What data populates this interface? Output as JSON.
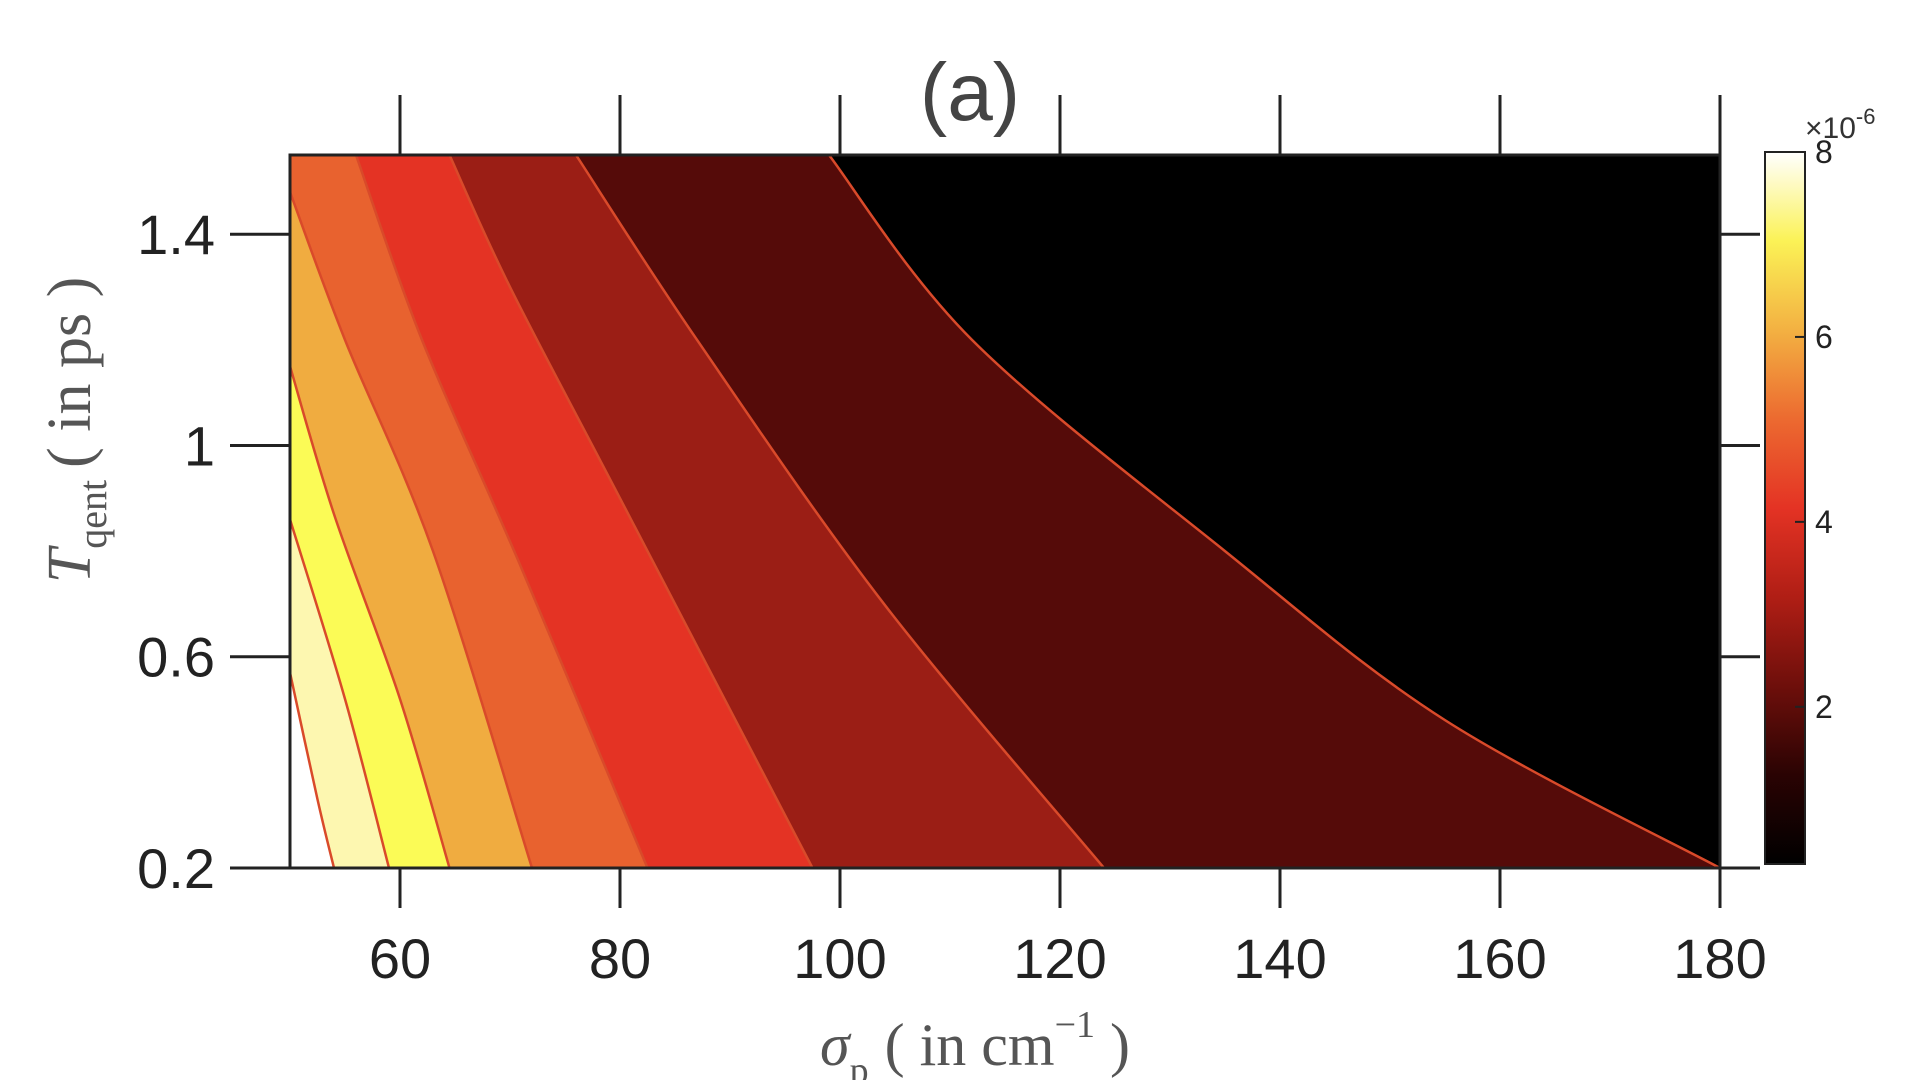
{
  "chart_data": {
    "type": "contour",
    "title": "(a)",
    "xlabel": {
      "symbol": "σ",
      "subscript": "p",
      "unit": "( in cm",
      "exponent": "−1",
      "close": " )"
    },
    "ylabel": {
      "symbol": "T",
      "subscript": "qent",
      "unit": "( in ps )"
    },
    "xlim": [
      50,
      180
    ],
    "ylim": [
      0.2,
      1.55
    ],
    "x_ticks": [
      60,
      80,
      100,
      120,
      140,
      160,
      180
    ],
    "y_ticks": [
      0.2,
      0.6,
      1,
      1.4
    ],
    "x_tick_labels": [
      "60",
      "80",
      "100",
      "120",
      "140",
      "160",
      "180"
    ],
    "y_tick_labels": [
      "0.2",
      "0.6",
      "1",
      "1.4"
    ],
    "colorbar": {
      "range": [
        0.3,
        8.0
      ],
      "ticks": [
        2,
        4,
        6,
        8
      ],
      "tick_labels": [
        "2",
        "4",
        "6",
        "8"
      ],
      "multiplier_base": "×10",
      "multiplier_exponent": "-6"
    },
    "contour_levels": [
      1,
      2,
      3,
      4,
      5,
      6,
      7
    ],
    "contour_lines": [
      {
        "level": 7,
        "points": [
          [
            50,
            0.57
          ],
          [
            52.5,
            0.33
          ],
          [
            54,
            0.2
          ]
        ]
      },
      {
        "level": 6,
        "points": [
          [
            50,
            0.86
          ],
          [
            55,
            0.52
          ],
          [
            59,
            0.2
          ]
        ]
      },
      {
        "level": 5,
        "points": [
          [
            50,
            1.15
          ],
          [
            54,
            0.87
          ],
          [
            60,
            0.52
          ],
          [
            64.5,
            0.2
          ]
        ]
      },
      {
        "level": 4,
        "points": [
          [
            50,
            1.48
          ],
          [
            55,
            1.2
          ],
          [
            63,
            0.8
          ],
          [
            72,
            0.2
          ]
        ]
      },
      {
        "level": 3,
        "points": [
          [
            56,
            1.55
          ],
          [
            62,
            1.2
          ],
          [
            71,
            0.77
          ],
          [
            82.5,
            0.2
          ]
        ]
      },
      {
        "level": 2,
        "points": [
          [
            64.5,
            1.55
          ],
          [
            70,
            1.3
          ],
          [
            80,
            0.9
          ],
          [
            97.5,
            0.2
          ]
        ]
      },
      {
        "level": 1,
        "points": [
          [
            76,
            1.55
          ],
          [
            87,
            1.2
          ],
          [
            104,
            0.7
          ],
          [
            124,
            0.2
          ]
        ]
      },
      {
        "level": 0.5,
        "points": [
          [
            99,
            1.55
          ],
          [
            112,
            1.2
          ],
          [
            135,
            0.8
          ],
          [
            155,
            0.48
          ],
          [
            180,
            0.2
          ]
        ]
      }
    ],
    "band_colors": [
      "#000000",
      "#550b09",
      "#9b1e15",
      "#e43324",
      "#e8622f",
      "#f0ac40",
      "#fbfb56",
      "#fdf7b0",
      "#ffffff"
    ],
    "colorbar_stops": [
      "#000000",
      "#2a0303",
      "#6e0f0b",
      "#b01e15",
      "#e43324",
      "#ec6a30",
      "#f3b142",
      "#fbf256",
      "#ffffff"
    ]
  }
}
